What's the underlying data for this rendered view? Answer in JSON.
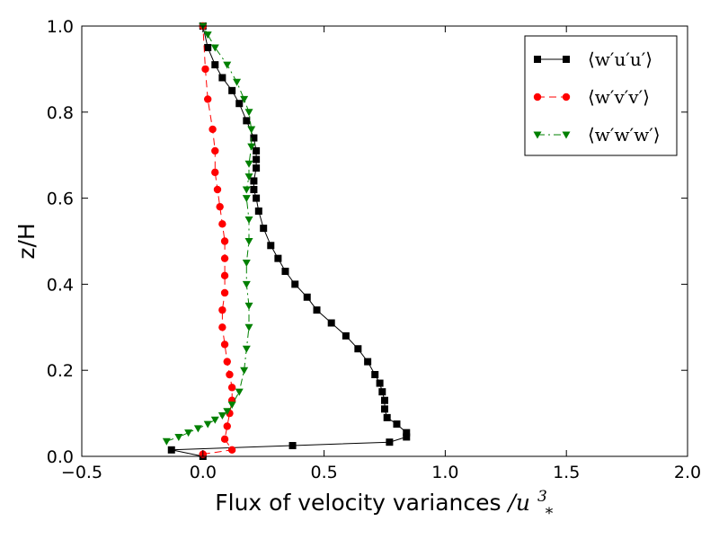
{
  "chart_data": {
    "type": "line",
    "title": "",
    "xlabel_text": "Flux of velocity variances",
    "xlabel_unit_symbol": "/u",
    "xlabel_unit_super": "3",
    "xlabel_unit_sub": "*",
    "ylabel": "z/H",
    "xlim": [
      -0.5,
      2.0
    ],
    "ylim": [
      0.0,
      1.0
    ],
    "xticks": [
      -0.5,
      0.0,
      0.5,
      1.0,
      1.5,
      2.0
    ],
    "xtick_labels": [
      "−0.5",
      "0.0",
      "0.5",
      "1.0",
      "1.5",
      "2.0"
    ],
    "yticks": [
      0.0,
      0.2,
      0.4,
      0.6,
      0.8,
      1.0
    ],
    "ytick_labels": [
      "0.0",
      "0.2",
      "0.4",
      "0.6",
      "0.8",
      "1.0"
    ],
    "grid": false,
    "legend_position": "top-right",
    "series": [
      {
        "name": "⟨w′u′u′⟩",
        "color": "#000000",
        "marker": "square",
        "line_style": "solid",
        "x": [
          0.0,
          -0.13,
          0.37,
          0.77,
          0.84,
          0.84,
          0.8,
          0.76,
          0.75,
          0.75,
          0.74,
          0.73,
          0.71,
          0.68,
          0.64,
          0.59,
          0.53,
          0.47,
          0.43,
          0.38,
          0.34,
          0.31,
          0.28,
          0.25,
          0.23,
          0.22,
          0.21,
          0.21,
          0.22,
          0.22,
          0.22,
          0.21,
          0.18,
          0.15,
          0.12,
          0.08,
          0.05,
          0.02,
          0.0
        ],
        "y": [
          0.0,
          0.015,
          0.025,
          0.033,
          0.045,
          0.055,
          0.075,
          0.09,
          0.11,
          0.13,
          0.15,
          0.17,
          0.19,
          0.22,
          0.25,
          0.28,
          0.31,
          0.34,
          0.37,
          0.4,
          0.43,
          0.46,
          0.49,
          0.53,
          0.57,
          0.6,
          0.62,
          0.64,
          0.67,
          0.69,
          0.71,
          0.74,
          0.78,
          0.82,
          0.85,
          0.88,
          0.91,
          0.95,
          1.0
        ]
      },
      {
        "name": "⟨w′v′v′⟩",
        "color": "#ff0000",
        "marker": "circle",
        "line_style": "dashed",
        "x": [
          0.0,
          0.12,
          0.09,
          0.1,
          0.11,
          0.12,
          0.12,
          0.11,
          0.1,
          0.09,
          0.08,
          0.08,
          0.09,
          0.09,
          0.09,
          0.09,
          0.08,
          0.07,
          0.06,
          0.05,
          0.05,
          0.04,
          0.02,
          0.01,
          0.0
        ],
        "y": [
          0.005,
          0.015,
          0.04,
          0.07,
          0.1,
          0.13,
          0.16,
          0.19,
          0.22,
          0.26,
          0.3,
          0.34,
          0.38,
          0.42,
          0.46,
          0.5,
          0.54,
          0.58,
          0.62,
          0.66,
          0.71,
          0.76,
          0.83,
          0.9,
          1.0
        ]
      },
      {
        "name": "⟨w′w′w′⟩",
        "color": "#008000",
        "marker": "triangle-down",
        "line_style": "dashdot",
        "x": [
          -0.15,
          -0.1,
          -0.06,
          -0.02,
          0.02,
          0.05,
          0.08,
          0.1,
          0.12,
          0.15,
          0.17,
          0.18,
          0.19,
          0.19,
          0.18,
          0.18,
          0.19,
          0.19,
          0.18,
          0.18,
          0.19,
          0.19,
          0.2,
          0.2,
          0.19,
          0.17,
          0.14,
          0.1,
          0.05,
          0.02,
          0.0
        ],
        "y": [
          0.035,
          0.045,
          0.055,
          0.065,
          0.075,
          0.085,
          0.095,
          0.105,
          0.12,
          0.15,
          0.2,
          0.25,
          0.3,
          0.35,
          0.4,
          0.45,
          0.5,
          0.55,
          0.6,
          0.62,
          0.65,
          0.68,
          0.72,
          0.76,
          0.8,
          0.83,
          0.87,
          0.91,
          0.95,
          0.98,
          1.0
        ]
      }
    ]
  }
}
